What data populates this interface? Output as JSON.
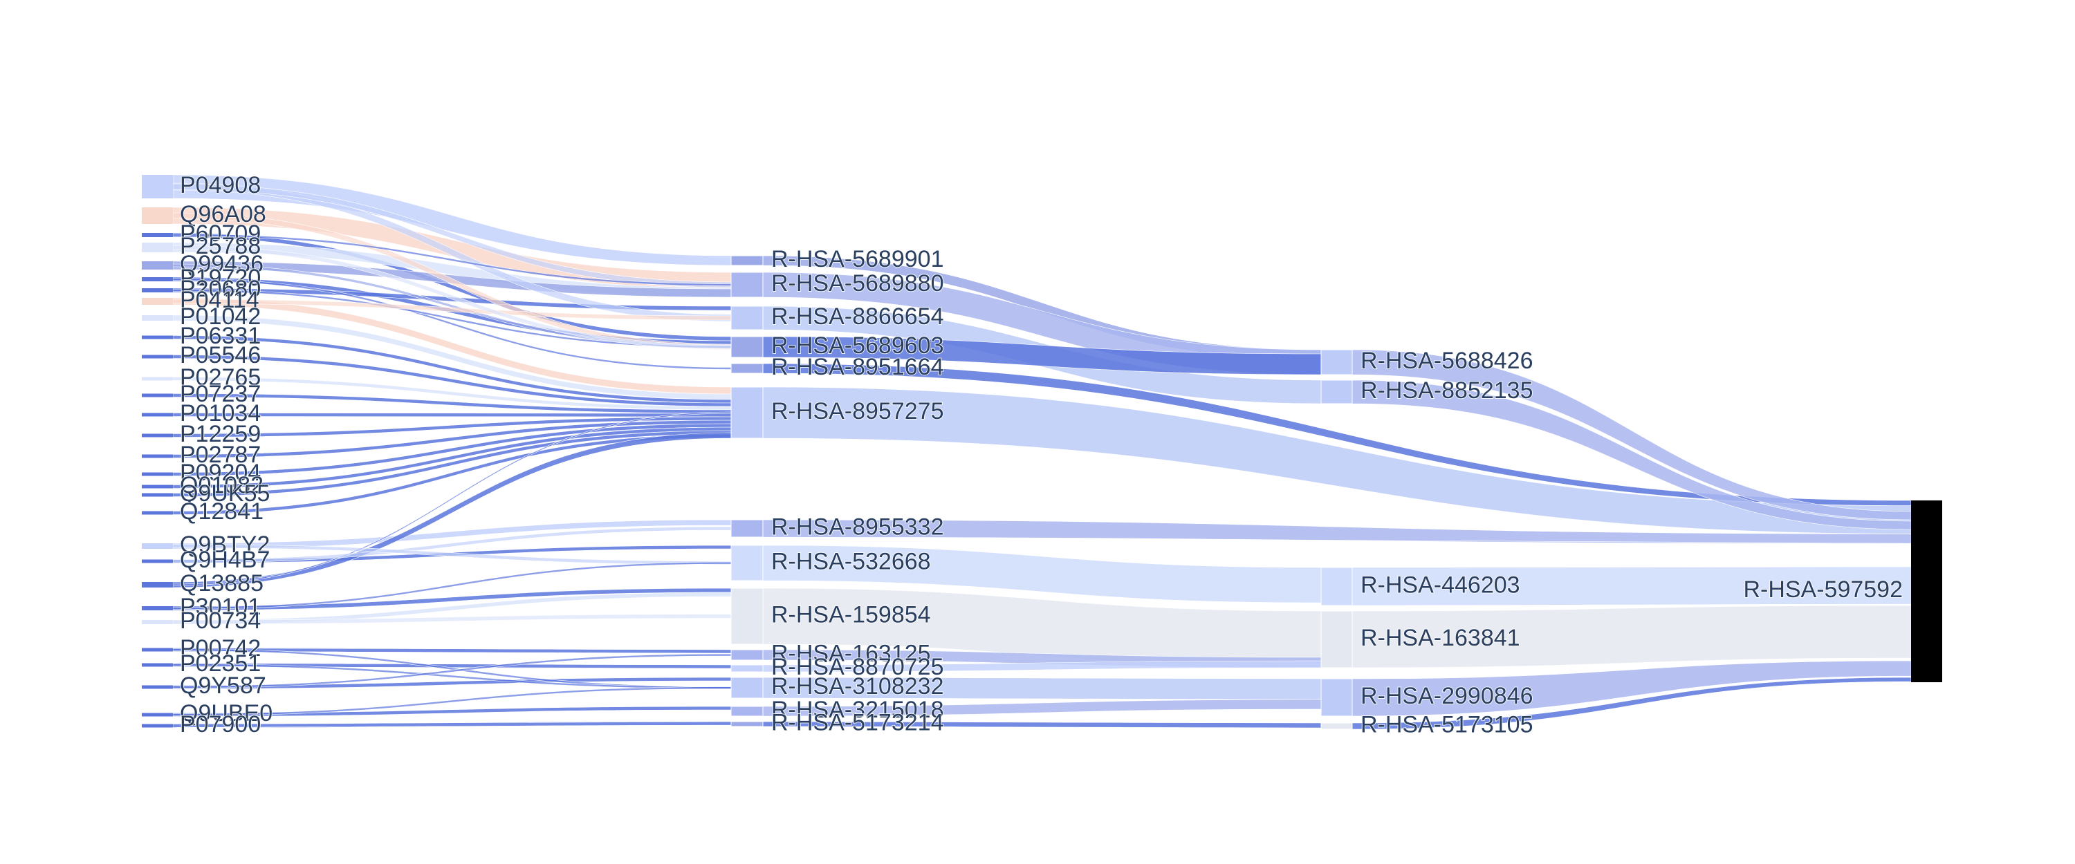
{
  "diagram": {
    "type": "sankey",
    "link_colors": {
      "light_blue": "#c3d1fb",
      "pale_blue": "#dbe4fb",
      "peach": "#f9d8cc",
      "mid_blue": "#9ba9e8",
      "dark_blue": "#5b75dd",
      "periwinkle": "#a9b6f0",
      "grey": "#e4e8f0"
    },
    "columns": {
      "proteins": [
        "P04908",
        "Q96A08",
        "P60709",
        "P25788",
        "Q99436",
        "P19720",
        "P20680",
        "P04114",
        "P01042",
        "P06331",
        "P05546",
        "P02765",
        "P07237",
        "P01034",
        "P12259",
        "P02787",
        "P09204",
        "Q01082",
        "Q9UK55",
        "Q12841",
        "Q9BTY2",
        "Q9H4B7",
        "Q13885",
        "P30101",
        "P00734",
        "P00742",
        "P02351",
        "Q9Y587",
        "Q9UBE0",
        "P07900"
      ],
      "pathways_level1": [
        "R-HSA-5689901",
        "R-HSA-5689880",
        "R-HSA-8866654",
        "R-HSA-5689603",
        "R-HSA-8951664",
        "R-HSA-8957275",
        "R-HSA-8955332",
        "R-HSA-532668",
        "R-HSA-159854",
        "R-HSA-163125",
        "R-HSA-8870725",
        "R-HSA-3108232",
        "R-HSA-3215018",
        "R-HSA-5173214"
      ],
      "pathways_level2": [
        "R-HSA-5688426",
        "R-HSA-8852135",
        "R-HSA-446203",
        "R-HSA-163841",
        "R-HSA-2990846",
        "R-HSA-5173105"
      ],
      "root": [
        "R-HSA-597592"
      ]
    }
  }
}
